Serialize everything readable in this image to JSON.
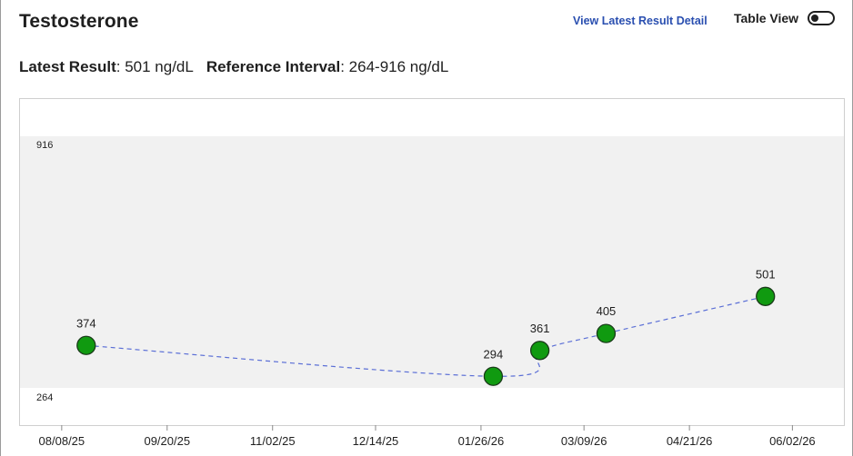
{
  "header": {
    "title": "Testosterone",
    "detail_link": "View Latest Result Detail",
    "table_view_label": "Table View"
  },
  "summary": {
    "latest_label": "Latest Result",
    "latest_value": ": 501 ng/dL",
    "reference_label": "Reference Interval",
    "reference_value": ": 264-916 ng/dL"
  },
  "colors": {
    "reference_band": "#f1f1f1",
    "point_fill": "#109a10",
    "point_stroke": "#1a3a1a",
    "line": "#5b6fd6",
    "link": "#2a4fb0"
  },
  "chart_data": {
    "type": "line",
    "title": "",
    "xlabel": "",
    "ylabel": "",
    "unit": "ng/dL",
    "reference_range": {
      "low": 264,
      "high": 916,
      "low_label": "264",
      "high_label": "916"
    },
    "ylim": [
      180,
      1000
    ],
    "x_ticks": [
      "2025-08-08",
      "2025-09-20",
      "2025-11-02",
      "2025-12-14",
      "2026-01-26",
      "2026-03-09",
      "2026-04-21",
      "2026-06-02"
    ],
    "x_tick_labels": [
      "08/08/25",
      "09/20/25",
      "11/02/25",
      "12/14/25",
      "01/26/26",
      "03/09/26",
      "04/21/26",
      "06/02/26"
    ],
    "xlim": [
      "2025-07-22",
      "2026-06-23"
    ],
    "series": [
      {
        "points": [
          {
            "x": "2025-08-18",
            "y": 374,
            "label": "374"
          },
          {
            "x": "2026-01-31",
            "y": 294,
            "label": "294"
          },
          {
            "x": "2026-02-19",
            "y": 361,
            "label": "361"
          },
          {
            "x": "2026-03-18",
            "y": 405,
            "label": "405"
          },
          {
            "x": "2026-05-22",
            "y": 501,
            "label": "501"
          }
        ]
      }
    ],
    "grid": false
  }
}
